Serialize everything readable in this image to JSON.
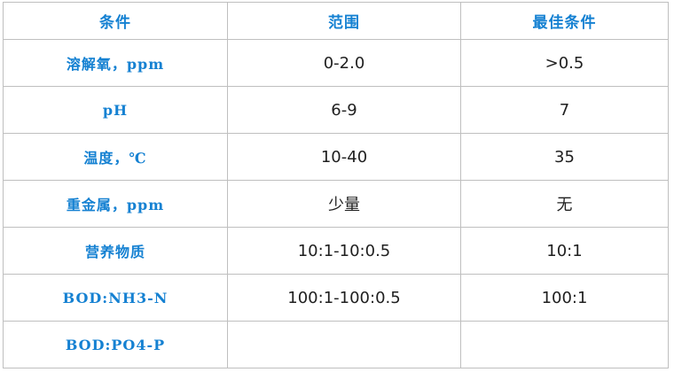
{
  "table": {
    "columns": [
      "条件",
      "范围",
      "最佳条件"
    ],
    "rows": [
      {
        "condition": "溶解氧，ppm",
        "range": "0-2.0",
        "best": ">0.5"
      },
      {
        "condition": "pH",
        "range": "6-9",
        "best": "7"
      },
      {
        "condition": "温度，℃",
        "range": "10-40",
        "best": "35"
      },
      {
        "condition": "重金属，ppm",
        "range": "少量",
        "best": "无"
      },
      {
        "condition": "营养物质",
        "range": "10:1-10:0.5",
        "best": "10:1"
      },
      {
        "condition": "BOD:NH3-N",
        "range": "100:1-100:0.5",
        "best": "100:1"
      },
      {
        "condition": "BOD:PO4-P",
        "range": "",
        "best": ""
      }
    ],
    "colors": {
      "accent_text": "#1581d2",
      "body_text": "#1f1f1f",
      "grid_border": "#bfbfbf",
      "background": "#ffffff"
    }
  }
}
